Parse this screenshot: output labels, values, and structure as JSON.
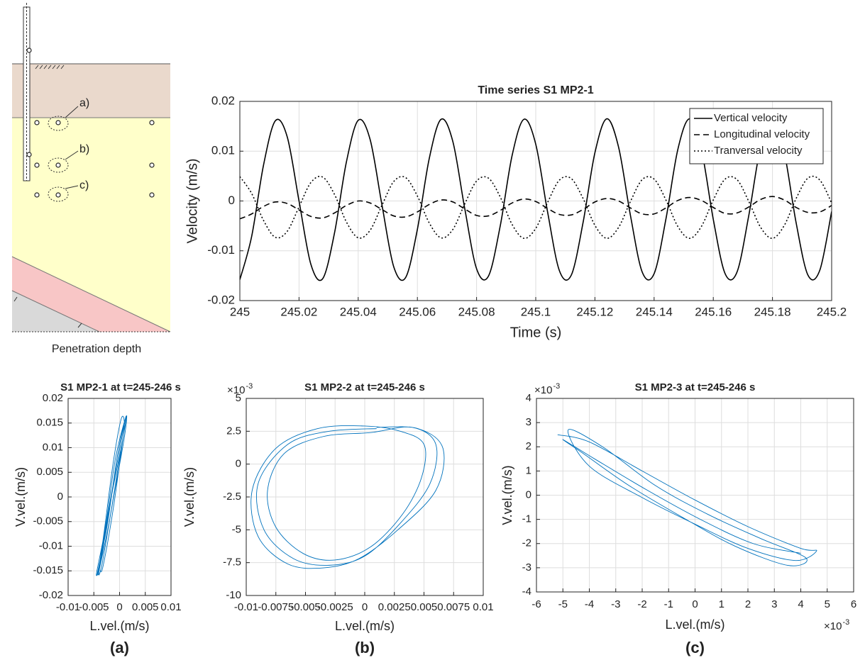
{
  "diagram": {
    "labels": [
      "a)",
      "b)",
      "c)"
    ],
    "caption": "Penetration depth"
  },
  "chart_data": [
    {
      "type": "line",
      "title": "Time series S1 MP2-1",
      "x_label": "Time (s)",
      "y_label": "Velocity (m/s)",
      "xlim": [
        245,
        245.2
      ],
      "xticks": [
        245,
        245.02,
        245.04,
        245.06,
        245.08,
        245.1,
        245.12,
        245.14,
        245.16,
        245.18,
        245.2
      ],
      "ylim": [
        -0.02,
        0.02
      ],
      "yticks": [
        -0.02,
        -0.01,
        0,
        0.01,
        0.02
      ],
      "grid": true,
      "legend": "upper right",
      "x": [
        245,
        245.004,
        245.008,
        245.012,
        245.016,
        245.02,
        245.024,
        245.028,
        245.032,
        245.036,
        245.04,
        245.044,
        245.048,
        245.052,
        245.056,
        245.06,
        245.064,
        245.068,
        245.072,
        245.076,
        245.08,
        245.084,
        245.088,
        245.092,
        245.096,
        245.1,
        245.104,
        245.108,
        245.112,
        245.116,
        245.12,
        245.124,
        245.128,
        245.132,
        245.136,
        245.14,
        245.144,
        245.148,
        245.152,
        245.156,
        245.16,
        245.164,
        245.168,
        245.172,
        245.176,
        245.18,
        245.184,
        245.188,
        245.192,
        245.196,
        245.2
      ],
      "series": [
        {
          "name": "Vertical velocity",
          "color": "#000000",
          "linestyle": "solid",
          "values": [
            -0.0158,
            -0.0071,
            0.0072,
            0.0161,
            0.0129,
            0,
            -0.0127,
            -0.0156,
            -0.0064,
            0.0078,
            0.0162,
            0.0124,
            -0.0007,
            -0.0132,
            -0.0154,
            -0.0057,
            0.0085,
            0.0164,
            0.0119,
            -0.0015,
            -0.0136,
            -0.0151,
            -0.005,
            0.0091,
            0.0164,
            0.0114,
            -0.0022,
            -0.014,
            -0.0149,
            -0.0043,
            0.0097,
            0.0165,
            0.0108,
            -0.0029,
            -0.0143,
            -0.0146,
            -0.0036,
            0.0103,
            0.0165,
            0.0103,
            -0.0037,
            -0.0146,
            -0.0143,
            -0.0029,
            0.0109,
            0.0165,
            0.0097,
            -0.0044,
            -0.0149,
            -0.0139,
            -0.0021
          ]
        },
        {
          "name": "Longitudinal velocity",
          "color": "#000000",
          "linestyle": "dashed",
          "values": [
            -0.0036,
            -0.0026,
            -0.0011,
            -0.0002,
            -0.0005,
            -0.0018,
            -0.0031,
            -0.0034,
            -0.0024,
            -0.0009,
            0,
            -0.0004,
            -0.0017,
            -0.003,
            -0.0032,
            -0.0022,
            -0.0007,
            0.0002,
            -0.0002,
            -0.0016,
            -0.0029,
            -0.003,
            -0.0019,
            -0.0004,
            0.0004,
            -0.0001,
            -0.0015,
            -0.0027,
            -0.0028,
            -0.0017,
            -0.0002,
            0.0005,
            0,
            -0.0014,
            -0.0026,
            -0.0026,
            -0.0014,
            0.0001,
            0.0007,
            0.0001,
            -0.0013,
            -0.0025,
            -0.0024,
            -0.0012,
            0.0003,
            0.0009,
            0.0002,
            -0.0013,
            -0.0023,
            -0.0022,
            -0.0009
          ]
        },
        {
          "name": "Tranversal velocity",
          "color": "#000000",
          "linestyle": "dotted",
          "values": [
            0.0049,
            0.0015,
            -0.0039,
            -0.0073,
            -0.0061,
            -0.0012,
            0.0037,
            0.0048,
            0.0013,
            -0.0042,
            -0.0074,
            -0.0059,
            -0.0009,
            0.0039,
            0.0047,
            0.001,
            -0.0044,
            -0.0074,
            -0.0057,
            -0.0006,
            0.004,
            0.0046,
            0.0008,
            -0.0047,
            -0.0075,
            -0.0055,
            -0.0003,
            0.0042,
            0.0045,
            0.0005,
            -0.0049,
            -0.0075,
            -0.0053,
            -0.0001,
            0.0043,
            0.0044,
            0.0002,
            -0.0051,
            -0.0075,
            -0.0051,
            0.0002,
            0.0044,
            0.0043,
            -0.0001,
            -0.0053,
            -0.0075,
            -0.0049,
            0.0005,
            0.0046,
            0.0042,
            -0.0004
          ]
        }
      ]
    },
    {
      "type": "line",
      "title": "S1 MP2-1 at t=245-246 s",
      "x_label": "L.vel.(m/s)",
      "y_label": "V.vel.(m/s)",
      "caption": "(a)",
      "xlim": [
        -0.01,
        0.01
      ],
      "xticks": [
        -0.01,
        -0.005,
        0,
        0.005,
        0.01
      ],
      "ylim": [
        -0.02,
        0.02
      ],
      "yticks": [
        -0.02,
        -0.015,
        -0.01,
        -0.005,
        0,
        0.005,
        0.01,
        0.015,
        0.02
      ],
      "grid": true,
      "color": "#0072bd",
      "x": [
        -0.0042,
        -0.003,
        -0.0012,
        0.0004,
        0.0008,
        -0.0016,
        -0.0036,
        -0.0045,
        -0.0028,
        -0.0008,
        0.0012,
        0.0005,
        -0.0018,
        -0.0038,
        -0.0043,
        -0.0024,
        -0.0004,
        0.0013,
        0.0009,
        -0.0014,
        -0.0034,
        -0.004,
        -0.002,
        0.0002,
        0.0014,
        0.0006,
        -0.0012,
        -0.0032,
        -0.0038
      ],
      "values": [
        -0.0158,
        -0.0071,
        0.0072,
        0.0161,
        0.0129,
        0,
        -0.0127,
        -0.0156,
        -0.0064,
        0.0078,
        0.0162,
        0.0124,
        -0.0007,
        -0.0132,
        -0.0154,
        -0.0057,
        0.0085,
        0.0164,
        0.0119,
        -0.0015,
        -0.0136,
        -0.0151,
        -0.005,
        0.0091,
        0.0164,
        0.0114,
        -0.0022,
        -0.014,
        -0.0149
      ]
    },
    {
      "type": "line",
      "title": "S1 MP2-2 at t=245-246 s",
      "x_label": "L.vel.(m/s)",
      "y_label": "V.vel.(m/s)",
      "caption": "(b)",
      "y_multiplier": {
        "base": "×10",
        "exponent": "-3"
      },
      "xlim": [
        -0.01,
        0.01
      ],
      "xticks": [
        -0.01,
        -0.0075,
        -0.005,
        -0.0025,
        0,
        0.0025,
        0.005,
        0.0075,
        0.01
      ],
      "ylim": [
        -0.01,
        0.005
      ],
      "yticks": [
        {
          "value": -0.01,
          "label": "-10"
        },
        {
          "value": -0.0075,
          "label": "-7.5"
        },
        {
          "value": -0.005,
          "label": "-5"
        },
        {
          "value": -0.0025,
          "label": "-2.5"
        },
        0,
        {
          "value": 0.0025,
          "label": "2.5"
        },
        {
          "value": 0.005,
          "label": "5"
        }
      ],
      "grid": true,
      "color": "#0072bd",
      "x": [
        0.001,
        -0.003,
        -0.0065,
        -0.009,
        -0.0085,
        -0.006,
        -0.003,
        0,
        0.003,
        0.0055,
        0.006,
        0.004,
        0.0005,
        -0.0035,
        -0.0068,
        -0.0082,
        -0.0075,
        -0.0052,
        -0.0025,
        0.0005,
        0.0032,
        0.0048,
        0.005,
        0.003,
        0,
        -0.004,
        -0.0075,
        -0.0095,
        -0.009,
        -0.0065,
        -0.0035,
        -0.0005,
        0.0028,
        0.006,
        0.0066,
        0.0045,
        0.001
      ],
      "values": [
        0.0027,
        0.0025,
        0.0015,
        -0.0015,
        -0.005,
        -0.0072,
        -0.0077,
        -0.007,
        -0.0045,
        -0.0015,
        0.0015,
        0.0028,
        0.0024,
        0.0021,
        0.0008,
        -0.002,
        -0.0048,
        -0.0068,
        -0.0073,
        -0.0063,
        -0.0038,
        -0.001,
        0.0015,
        0.0025,
        0.0029,
        0.0027,
        0.0012,
        -0.002,
        -0.0055,
        -0.0076,
        -0.0079,
        -0.0072,
        -0.005,
        -0.002,
        0.0012,
        0.0027,
        0.0028
      ]
    },
    {
      "type": "line",
      "title": "S1 MP2-3 at t=245-246 s",
      "x_label": "L.vel.(m/s)",
      "y_label": "V.vel.(m/s)",
      "caption": "(c)",
      "x_multiplier": {
        "base": "×10",
        "exponent": "-3"
      },
      "y_multiplier": {
        "base": "×10",
        "exponent": "-3"
      },
      "xlim": [
        -0.006,
        0.006
      ],
      "xticks": [
        {
          "value": -0.006,
          "label": "-6"
        },
        {
          "value": -0.005,
          "label": "-5"
        },
        {
          "value": -0.004,
          "label": "-4"
        },
        {
          "value": -0.003,
          "label": "-3"
        },
        {
          "value": -0.002,
          "label": "-2"
        },
        {
          "value": -0.001,
          "label": "-1"
        },
        0,
        {
          "value": 0.001,
          "label": "1"
        },
        {
          "value": 0.002,
          "label": "2"
        },
        {
          "value": 0.003,
          "label": "3"
        },
        {
          "value": 0.004,
          "label": "4"
        },
        {
          "value": 0.005,
          "label": "5"
        },
        {
          "value": 0.006,
          "label": "6"
        }
      ],
      "ylim": [
        -0.004,
        0.004
      ],
      "yticks": [
        {
          "value": -0.004,
          "label": "-4"
        },
        {
          "value": -0.003,
          "label": "-3"
        },
        {
          "value": -0.002,
          "label": "-2"
        },
        {
          "value": -0.001,
          "label": "-1"
        },
        0,
        {
          "value": 0.001,
          "label": "1"
        },
        {
          "value": 0.002,
          "label": "2"
        },
        {
          "value": 0.003,
          "label": "3"
        },
        {
          "value": 0.004,
          "label": "4"
        }
      ],
      "grid": true,
      "color": "#0072bd",
      "x": [
        -0.0052,
        -0.004,
        -0.002,
        0,
        0.002,
        0.004,
        0.0046,
        0.0038,
        0.002,
        0,
        -0.002,
        -0.004,
        -0.0048,
        -0.0035,
        -0.0015,
        0.0005,
        0.0025,
        0.0042,
        0.0035,
        0.0015,
        -0.0005,
        -0.0025,
        -0.0042,
        -0.005,
        -0.0038,
        -0.0018,
        0.0002,
        0.0022,
        0.004
      ],
      "values": [
        0.0025,
        0.0022,
        0.001,
        -0.0002,
        -0.0013,
        -0.0022,
        -0.0023,
        -0.0027,
        -0.0022,
        -0.0012,
        -0.0001,
        0.0012,
        0.0027,
        0.002,
        0.0004,
        -0.0008,
        -0.0018,
        -0.0026,
        -0.0029,
        -0.0021,
        -0.0009,
        0.0004,
        0.0017,
        0.0023,
        0.0015,
        0.0002,
        -0.001,
        -0.002,
        -0.0024
      ]
    }
  ]
}
